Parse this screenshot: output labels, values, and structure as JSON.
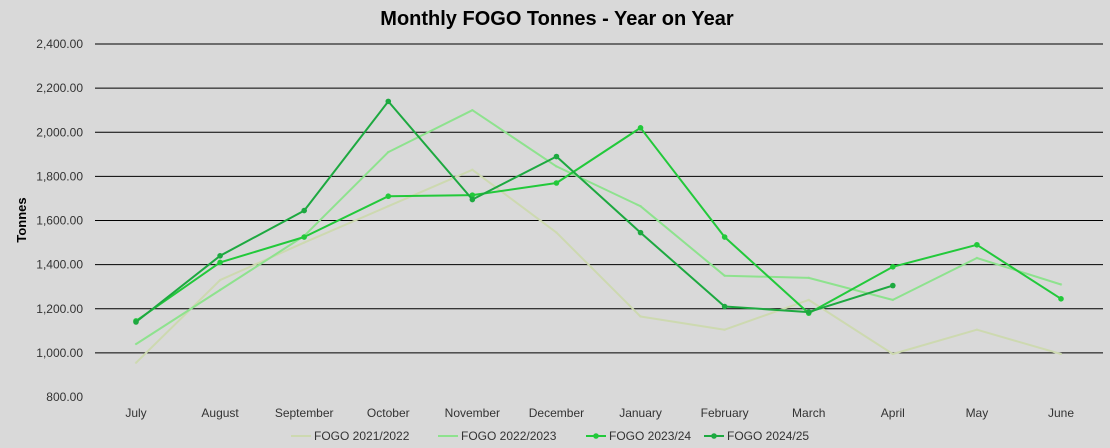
{
  "chart_data": {
    "type": "line",
    "title": "Monthly FOGO Tonnes - Year on Year",
    "xlabel": "",
    "ylabel": "Tonnes",
    "ylim": [
      800,
      2400
    ],
    "yticks": [
      "800.00",
      "1,000.00",
      "1,200.00",
      "1,400.00",
      "1,600.00",
      "1,800.00",
      "2,000.00",
      "2,200.00",
      "2,400.00"
    ],
    "grid": true,
    "legend": "bottom",
    "categories": [
      "July",
      "August",
      "September",
      "October",
      "November",
      "December",
      "January",
      "February",
      "March",
      "April",
      "May",
      "June"
    ],
    "series": [
      {
        "name": "FOGO 2021/2022",
        "color": "#cdd9b0",
        "markers": false,
        "values": [
          955,
          1330,
          1500,
          1665,
          1830,
          1545,
          1165,
          1105,
          1240,
          995,
          1105,
          995
        ]
      },
      {
        "name": "FOGO 2022/2023",
        "color": "#8ee28e",
        "markers": false,
        "values": [
          1040,
          1285,
          1530,
          1910,
          2100,
          1845,
          1665,
          1350,
          1340,
          1240,
          1430,
          1310
        ]
      },
      {
        "name": "FOGO 2023/24",
        "color": "#22c93a",
        "markers": true,
        "values": [
          1145,
          1410,
          1525,
          1710,
          1715,
          1770,
          2020,
          1525,
          1180,
          1390,
          1490,
          1245
        ]
      },
      {
        "name": "FOGO 2024/25",
        "color": "#1da940",
        "markers": true,
        "values": [
          1140,
          1440,
          1645,
          2140,
          1695,
          1890,
          1545,
          1210,
          1185,
          1305,
          null,
          null
        ]
      }
    ]
  }
}
